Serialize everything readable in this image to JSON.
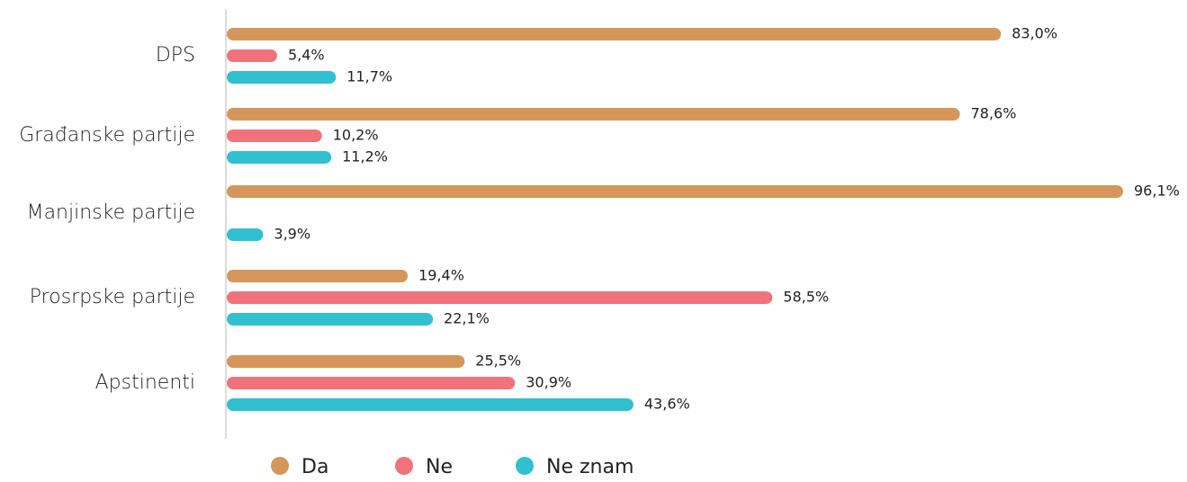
{
  "chart_data": {
    "type": "bar",
    "orientation": "horizontal",
    "categories": [
      "DPS",
      "Građanske partije",
      "Manjinske partije",
      "Prosrpske partije",
      "Apstinenti"
    ],
    "series": [
      {
        "name": "Da",
        "color": "#d4965a",
        "values": [
          83.0,
          78.6,
          96.1,
          19.4,
          25.5
        ],
        "value_labels": [
          "83,0%",
          "78,6%",
          "96,1%",
          "19,4%",
          "25,5%"
        ]
      },
      {
        "name": "Ne",
        "color": "#f0737c",
        "values": [
          5.4,
          10.2,
          null,
          58.5,
          30.9
        ],
        "value_labels": [
          "5,4%",
          "10,2%",
          null,
          "58,5%",
          "30,9%"
        ]
      },
      {
        "name": "Ne znam",
        "color": "#30c0d0",
        "values": [
          11.7,
          11.2,
          3.9,
          22.1,
          43.6
        ],
        "value_labels": [
          "11,7%",
          "11,2%",
          "3,9%",
          "22,1%",
          "43,6%"
        ]
      }
    ],
    "legend": "bottom"
  }
}
